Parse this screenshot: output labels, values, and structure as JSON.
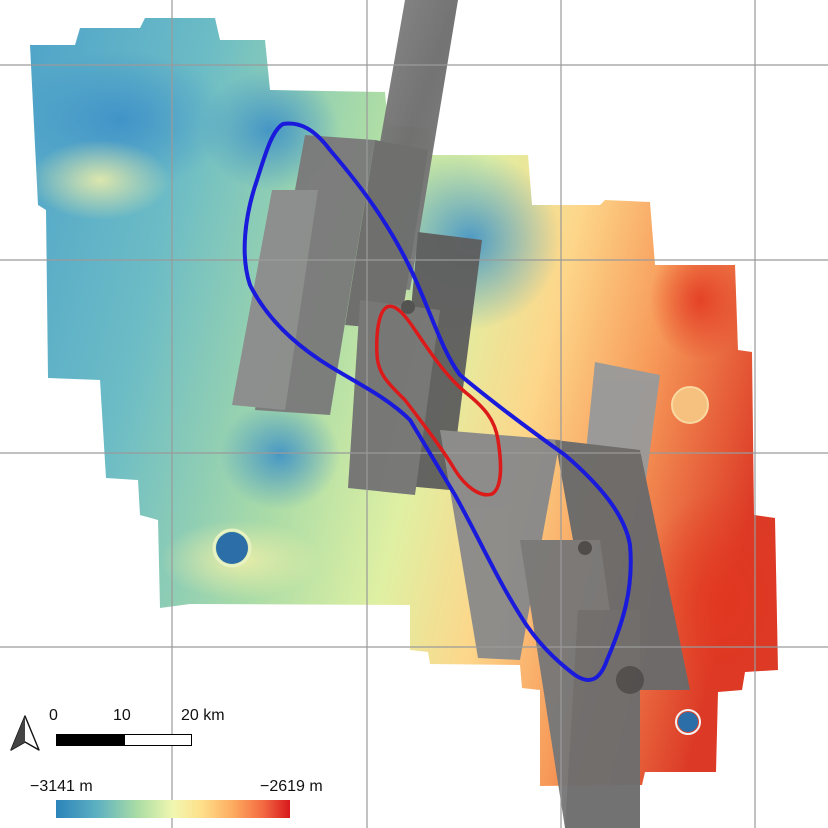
{
  "scale_bar": {
    "ticks": [
      "0",
      "10",
      "20 km"
    ]
  },
  "elevation_legend": {
    "min_label": "−3141 m",
    "max_label": "−2619 m",
    "colors": [
      "#2b83ba",
      "#5fb2c1",
      "#abdda4",
      "#e6f598",
      "#fee08b",
      "#fdae61",
      "#f46d43",
      "#d7191c"
    ]
  },
  "overlay_colors": {
    "outer_outline": "#1a1adc",
    "inner_outline": "#dc1a1a",
    "grid": "#9a9a9a"
  },
  "icons": {
    "north_arrow": "north-arrow-icon"
  }
}
